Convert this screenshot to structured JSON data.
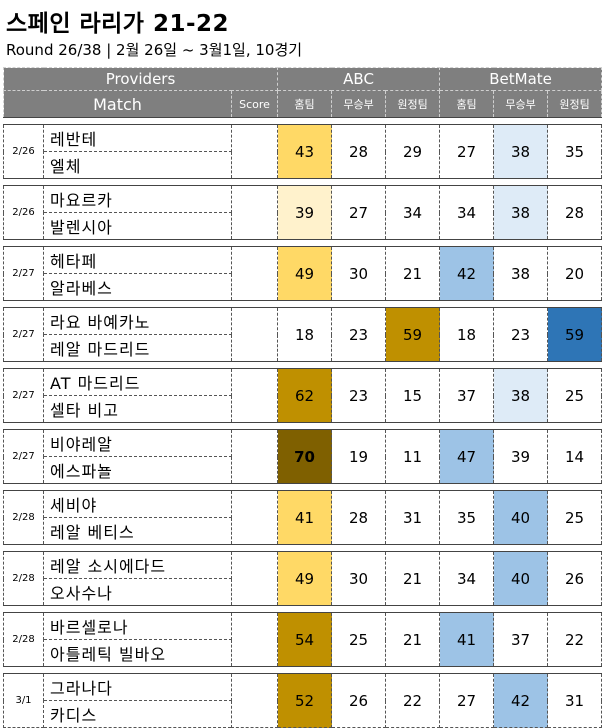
{
  "title": "스페인 라리가 21-22",
  "subtitle": "Round 26/38 | 2월 26일 ~ 3월1일, 10경기",
  "header": {
    "providers_label": "Providers",
    "match_label": "Match",
    "score_label": "Score",
    "providers": [
      "ABC",
      "BetMate"
    ],
    "columns": [
      "홈팀",
      "무승부",
      "원정팀",
      "홈팀",
      "무승부",
      "원정팀"
    ]
  },
  "colors": {
    "header_bg": "#7f7f7f",
    "light_yellow": "#fff2cc",
    "yellow": "#ffd966",
    "gold": "#bf9000",
    "dark_olive": "#7f6000",
    "light_blue": "#deebf7",
    "blue": "#9dc3e6",
    "dark_blue": "#2e75b6"
  },
  "matches": [
    {
      "date": "2/26",
      "home": "레반테",
      "away": "엘체",
      "values": [
        43,
        28,
        29,
        27,
        38,
        35
      ],
      "colors": [
        "#ffd966",
        "",
        "",
        "",
        "#deebf7",
        ""
      ]
    },
    {
      "date": "2/26",
      "home": "마요르카",
      "away": "발렌시아",
      "values": [
        39,
        27,
        34,
        34,
        38,
        28
      ],
      "colors": [
        "#fff2cc",
        "",
        "",
        "",
        "#deebf7",
        ""
      ]
    },
    {
      "date": "2/27",
      "home": "헤타페",
      "away": "알라베스",
      "values": [
        49,
        30,
        21,
        42,
        38,
        20
      ],
      "colors": [
        "#ffd966",
        "",
        "",
        "#9dc3e6",
        "",
        ""
      ]
    },
    {
      "date": "2/27",
      "home": "라요 바예카노",
      "away": "레알 마드리드",
      "values": [
        18,
        23,
        59,
        18,
        23,
        59
      ],
      "colors": [
        "",
        "",
        "#bf9000",
        "",
        "",
        "#2e75b6"
      ]
    },
    {
      "date": "2/27",
      "home": "AT 마드리드",
      "away": "셀타 비고",
      "values": [
        62,
        23,
        15,
        37,
        38,
        25
      ],
      "colors": [
        "#bf9000",
        "",
        "",
        "",
        "#deebf7",
        ""
      ]
    },
    {
      "date": "2/27",
      "home": "비야레알",
      "away": "에스파뇰",
      "values": [
        70,
        19,
        11,
        47,
        39,
        14
      ],
      "colors": [
        "#7f6000",
        "",
        "",
        "#9dc3e6",
        "",
        ""
      ],
      "bold_first": true
    },
    {
      "date": "2/28",
      "home": "세비야",
      "away": "레알 베티스",
      "values": [
        41,
        28,
        31,
        35,
        40,
        25
      ],
      "colors": [
        "#ffd966",
        "",
        "",
        "",
        "#9dc3e6",
        ""
      ]
    },
    {
      "date": "2/28",
      "home": "레알 소시에다드",
      "away": "오사수나",
      "values": [
        49,
        30,
        21,
        34,
        40,
        26
      ],
      "colors": [
        "#ffd966",
        "",
        "",
        "",
        "#9dc3e6",
        ""
      ]
    },
    {
      "date": "2/28",
      "home": "바르셀로나",
      "away": "아틀레틱 빌바오",
      "values": [
        54,
        25,
        21,
        41,
        37,
        22
      ],
      "colors": [
        "#bf9000",
        "",
        "",
        "#9dc3e6",
        "",
        ""
      ]
    },
    {
      "date": "3/1",
      "home": "그라나다",
      "away": "카디스",
      "values": [
        52,
        26,
        22,
        27,
        42,
        31
      ],
      "colors": [
        "#bf9000",
        "",
        "",
        "",
        "#9dc3e6",
        ""
      ]
    }
  ]
}
